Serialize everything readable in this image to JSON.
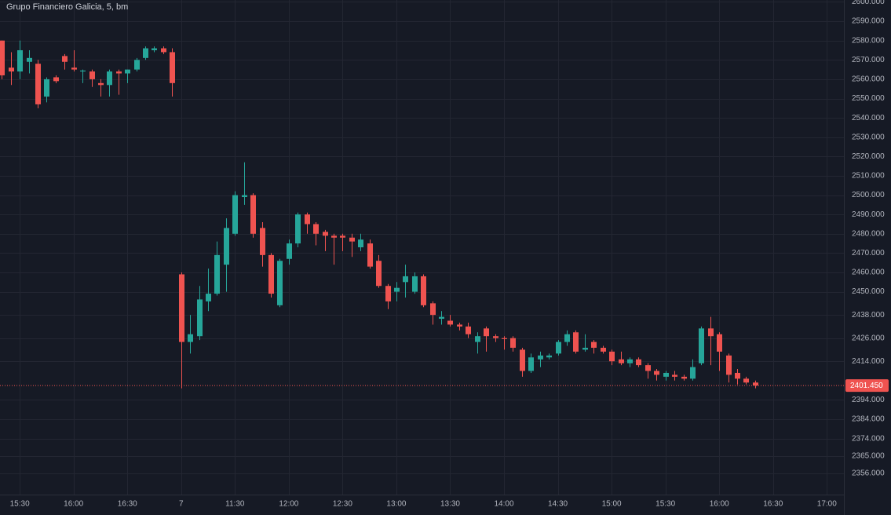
{
  "chart_data": {
    "type": "candlestick",
    "title": "Grupo Financiero Galicia, 5, bm",
    "up_color": "#26a69a",
    "down_color": "#ef5350",
    "grid": true,
    "open": [
      2580,
      2566,
      2564,
      2569,
      2568,
      2551,
      2561,
      2572,
      2566,
      2564,
      2564,
      2558,
      2557,
      2564,
      2563,
      2565,
      2571,
      2575,
      2576,
      2574,
      2459,
      2424,
      2427,
      2445,
      2449,
      2464,
      2480,
      2499,
      2500,
      2483,
      2469,
      2443,
      2467,
      2475,
      2490,
      2485,
      2481,
      2479,
      2479,
      2478,
      2473,
      2475,
      2466,
      2453,
      2450,
      2455,
      2450,
      2458,
      2444,
      2436,
      2435,
      2433,
      2432,
      2424,
      2431,
      2427,
      2426,
      2426,
      2420,
      2409,
      2415,
      2416,
      2418,
      2424,
      2429,
      2420,
      2424,
      2421,
      2419,
      2415,
      2413,
      2415,
      2412,
      2409,
      2406,
      2407,
      2406,
      2405,
      2413,
      2431,
      2428,
      2417,
      2408,
      2405,
      2403
    ],
    "high": [
      2580,
      2574,
      2580,
      2575,
      2570,
      2561,
      2562,
      2573,
      2575,
      2565,
      2565,
      2560,
      2565,
      2565,
      2565,
      2571,
      2577,
      2577,
      2577,
      2576,
      2460,
      2438,
      2453,
      2462,
      2476,
      2488,
      2502,
      2517,
      2501,
      2486,
      2470,
      2467,
      2477,
      2491,
      2491,
      2486,
      2482,
      2480,
      2480,
      2480,
      2480,
      2477,
      2469,
      2454,
      2455,
      2464,
      2460,
      2459,
      2445,
      2440,
      2438,
      2434,
      2434,
      2429,
      2432,
      2428,
      2427,
      2427,
      2421,
      2418,
      2419,
      2418,
      2425,
      2430,
      2430,
      2428,
      2425,
      2422,
      2420,
      2419,
      2416,
      2416,
      2413,
      2410,
      2409,
      2409,
      2407,
      2415,
      2432,
      2437,
      2429,
      2418,
      2410,
      2406,
      2404
    ],
    "low": [
      2560,
      2557,
      2560,
      2563,
      2545,
      2548,
      2558,
      2565,
      2564,
      2558,
      2556,
      2551,
      2551,
      2552,
      2558,
      2564,
      2570,
      2574,
      2573,
      2551,
      2400,
      2418,
      2425,
      2440,
      2448,
      2450,
      2479,
      2495,
      2478,
      2463,
      2447,
      2442,
      2464,
      2473,
      2480,
      2474,
      2471,
      2464,
      2471,
      2468,
      2471,
      2462,
      2452,
      2441,
      2445,
      2447,
      2449,
      2442,
      2433,
      2433,
      2432,
      2430,
      2426,
      2418,
      2419,
      2424,
      2420,
      2419,
      2406,
      2408,
      2411,
      2415,
      2417,
      2422,
      2418,
      2419,
      2418,
      2418,
      2412,
      2412,
      2411,
      2411,
      2405,
      2404,
      2404,
      2404,
      2404,
      2404,
      2412,
      2412,
      2409,
      2403,
      2402,
      2402,
      2400
    ],
    "close": [
      2562,
      2564,
      2575,
      2571,
      2547,
      2560,
      2559,
      2569,
      2565,
      2564.5,
      2560,
      2557,
      2564,
      2563,
      2565,
      2570,
      2576,
      2576,
      2574,
      2558,
      2424,
      2428,
      2446,
      2449,
      2469,
      2483,
      2500,
      2500,
      2480,
      2469,
      2449,
      2466,
      2475,
      2490,
      2485,
      2480,
      2479,
      2478,
      2478,
      2476,
      2477,
      2463,
      2453,
      2445,
      2452,
      2458,
      2458,
      2443,
      2438,
      2437,
      2433,
      2432,
      2428,
      2427,
      2427,
      2426,
      2425.5,
      2421,
      2409,
      2416,
      2417,
      2417,
      2424,
      2428,
      2419,
      2421,
      2421,
      2419,
      2414,
      2413,
      2415,
      2412,
      2409,
      2407,
      2408,
      2406,
      2405,
      2411,
      2431,
      2427,
      2419,
      2407,
      2405,
      2403,
      2401.45
    ],
    "xlim": [
      -0.2,
      93.9
    ],
    "xticks": [
      {
        "value": 2,
        "label": "15:30"
      },
      {
        "value": 8,
        "label": "16:00"
      },
      {
        "value": 14,
        "label": "16:30"
      },
      {
        "value": 20,
        "label": "7"
      },
      {
        "value": 26,
        "label": "11:30"
      },
      {
        "value": 32,
        "label": "12:00"
      },
      {
        "value": 38,
        "label": "12:30"
      },
      {
        "value": 44,
        "label": "13:00"
      },
      {
        "value": 50,
        "label": "13:30"
      },
      {
        "value": 56,
        "label": "14:00"
      },
      {
        "value": 62,
        "label": "14:30"
      },
      {
        "value": 68,
        "label": "15:00"
      },
      {
        "value": 74,
        "label": "15:30"
      },
      {
        "value": 80,
        "label": "16:00"
      },
      {
        "value": 86,
        "label": "16:30"
      },
      {
        "value": 92,
        "label": "17:00"
      }
    ],
    "ylim": [
      2345,
      2601
    ],
    "yticks": [
      {
        "value": 2600,
        "label": "2600.000"
      },
      {
        "value": 2590,
        "label": "2590.000"
      },
      {
        "value": 2580,
        "label": "2580.000"
      },
      {
        "value": 2570,
        "label": "2570.000"
      },
      {
        "value": 2560,
        "label": "2560.000"
      },
      {
        "value": 2550,
        "label": "2550.000"
      },
      {
        "value": 2540,
        "label": "2540.000"
      },
      {
        "value": 2530,
        "label": "2530.000"
      },
      {
        "value": 2520,
        "label": "2520.000"
      },
      {
        "value": 2510,
        "label": "2510.000"
      },
      {
        "value": 2500,
        "label": "2500.000"
      },
      {
        "value": 2490,
        "label": "2490.000"
      },
      {
        "value": 2480,
        "label": "2480.000"
      },
      {
        "value": 2470,
        "label": "2470.000"
      },
      {
        "value": 2460,
        "label": "2460.000"
      },
      {
        "value": 2450,
        "label": "2450.000"
      },
      {
        "value": 2438,
        "label": "2438.000"
      },
      {
        "value": 2426,
        "label": "2426.000"
      },
      {
        "value": 2414,
        "label": "2414.000"
      },
      {
        "value": 2394,
        "label": "2394.000"
      },
      {
        "value": 2384,
        "label": "2384.000"
      },
      {
        "value": 2374,
        "label": "2374.000"
      },
      {
        "value": 2365,
        "label": "2365.000"
      },
      {
        "value": 2356,
        "label": "2356.000"
      }
    ],
    "last_price": {
      "value": 2401.45,
      "label": "2401.450"
    }
  }
}
